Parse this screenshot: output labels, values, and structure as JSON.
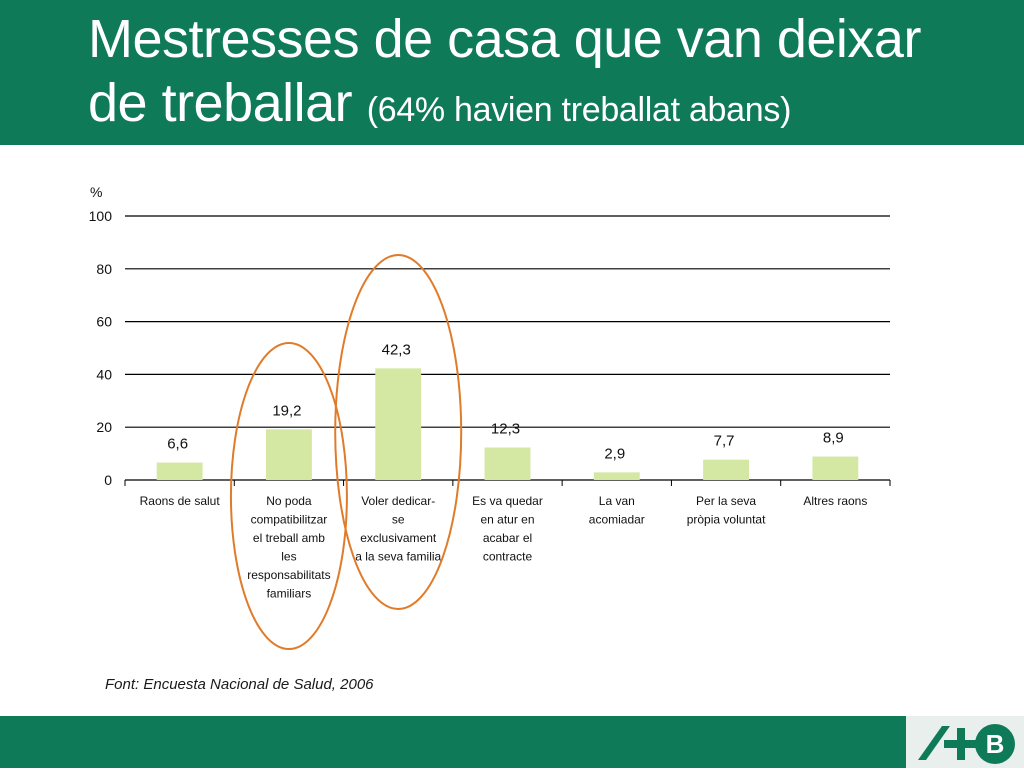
{
  "header": {
    "title_line1": "Mestresses de casa que van deixar",
    "title_line2_main": "de treballar",
    "title_line2_sub": "(64% havien treballat abans)"
  },
  "chart_data": {
    "type": "bar",
    "ylabel": "%",
    "ylim": [
      0,
      100
    ],
    "yticks": [
      "0",
      "20",
      "40",
      "60",
      "80",
      "100"
    ],
    "grid": true,
    "categories": [
      [
        "Raons de salut"
      ],
      [
        "No poda",
        "compatibilitzar",
        "el treball amb",
        "les",
        "responsabilitats",
        "familiars"
      ],
      [
        "Voler dedicar-",
        "se",
        "exclusivament",
        "a la seva familia"
      ],
      [
        "Es va quedar",
        "en atur en",
        "acabar el",
        "contracte"
      ],
      [
        "La van",
        "acomiadar"
      ],
      [
        "Per la seva",
        "pròpia voluntat"
      ],
      [
        "Altres raons"
      ]
    ],
    "values": [
      6.6,
      19.2,
      42.3,
      12.3,
      2.9,
      7.7,
      8.9
    ],
    "value_labels": [
      "6,6",
      "19,2",
      "42,3",
      "12,3",
      "2,9",
      "7,7",
      "8,9"
    ],
    "highlighted_categories": [
      1,
      2
    ]
  },
  "source": "Font: Encuesta Nacional de Salud, 2006",
  "colors": {
    "brand_green": "#0e7a58",
    "bar_fill": "#d4e8a4",
    "highlight_ellipse": "#e07b2a",
    "gridline": "#000000"
  },
  "logo": {
    "icon": "abp-logo-icon"
  }
}
